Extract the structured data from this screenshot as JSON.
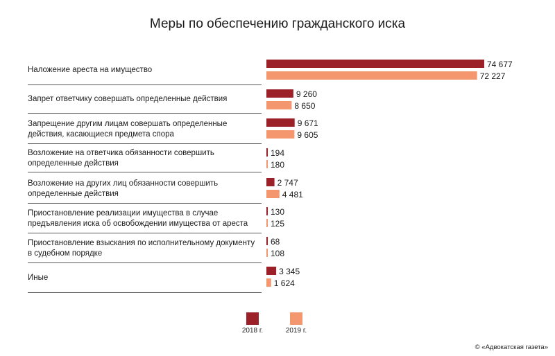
{
  "chart_data": {
    "type": "bar",
    "orientation": "horizontal",
    "title": "Меры по обеспечению гражданского иска",
    "categories": [
      "Наложение ареста на имущество",
      "Запрет ответчику совершать определенные действия",
      "Запрещение другим лицам совершать определенные действия, касающиеся предмета спора",
      "Возложение на ответчика обязанности совершить определенные действия",
      "Возложение на других лиц обязанности совершить определенные действия",
      "Приостановление реализации имущества в случае предъявления иска об освобождении имущества от ареста",
      "Приостановление взыскания по исполнительному документу в судебном порядке",
      "Иные"
    ],
    "series": [
      {
        "name": "2018 г.",
        "color": "#9b2027",
        "values": [
          74677,
          9260,
          9671,
          194,
          2747,
          130,
          68,
          3345
        ],
        "labels": [
          "74 677",
          "9 260",
          "9 671",
          "194",
          "2 747",
          "130",
          "68",
          "3 345"
        ]
      },
      {
        "name": "2019 г.",
        "color": "#f4976f",
        "values": [
          72227,
          8650,
          9605,
          180,
          4481,
          125,
          108,
          1624
        ],
        "labels": [
          "72 227",
          "8 650",
          "9 605",
          "180",
          "4 481",
          "125",
          "108",
          "1 624"
        ]
      }
    ],
    "xlim": [
      0,
      74677
    ],
    "legend": "bottom-center"
  },
  "credit": "© «Адвокатская газета»"
}
